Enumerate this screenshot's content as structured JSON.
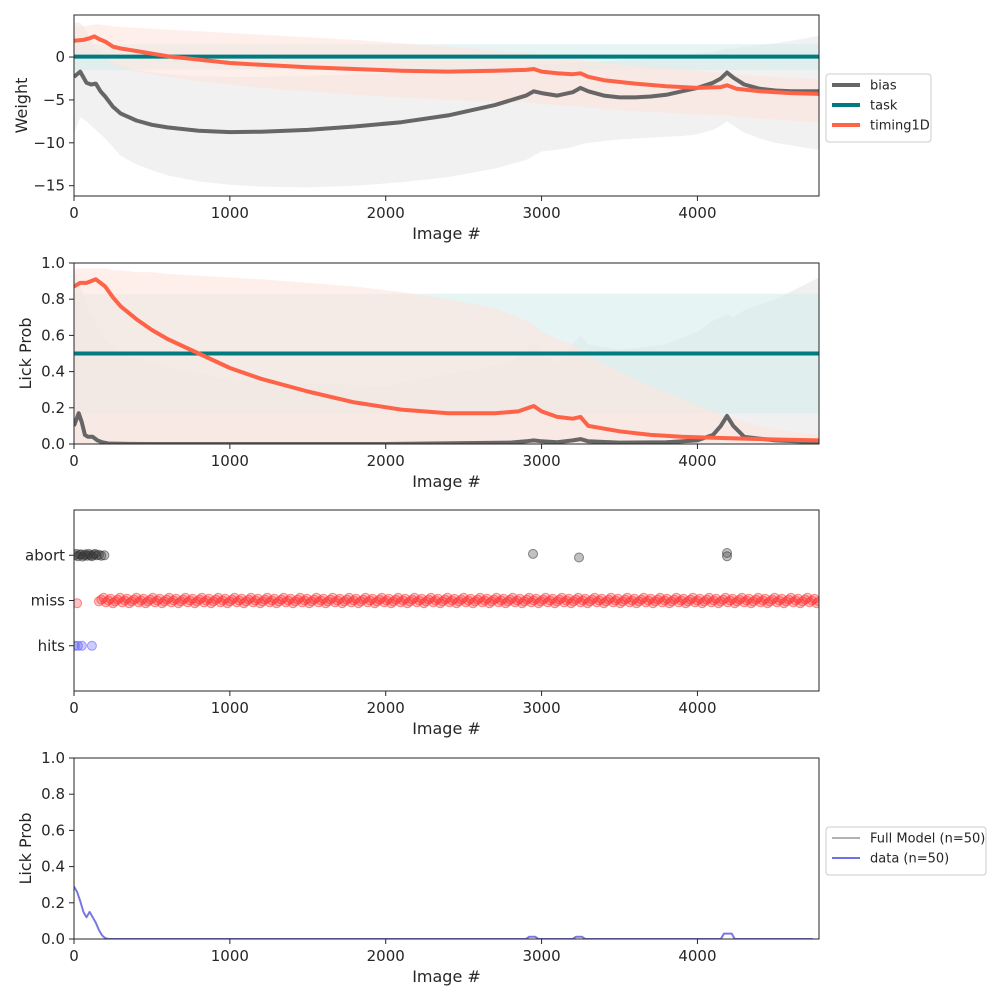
{
  "chart_data": [
    {
      "type": "line",
      "xlabel": "Image #",
      "ylabel": "Weight",
      "xlim": [
        0,
        4780
      ],
      "ylim": [
        -16.2,
        4.9
      ],
      "xticks": [
        0,
        1000,
        2000,
        3000,
        4000
      ],
      "yticks": [
        0,
        -5,
        -10,
        -15
      ],
      "ytick_labels": [
        "0",
        "−5",
        "−10",
        "−15"
      ],
      "grid": false,
      "legend": "outside-right",
      "series": [
        {
          "name": "bias",
          "color": "#666666",
          "x": [
            0,
            40,
            80,
            110,
            140,
            170,
            200,
            250,
            300,
            400,
            500,
            600,
            800,
            1000,
            1200,
            1500,
            1800,
            2100,
            2400,
            2700,
            2900,
            2950,
            3000,
            3100,
            3200,
            3250,
            3300,
            3400,
            3500,
            3600,
            3700,
            3800,
            3900,
            4000,
            4100,
            4150,
            4190,
            4230,
            4300,
            4400,
            4500,
            4600,
            4700,
            4780
          ],
          "y": [
            -2.3,
            -1.7,
            -3.0,
            -3.2,
            -3.1,
            -4.0,
            -4.6,
            -5.8,
            -6.6,
            -7.4,
            -7.9,
            -8.2,
            -8.6,
            -8.75,
            -8.7,
            -8.5,
            -8.1,
            -7.6,
            -6.8,
            -5.6,
            -4.5,
            -4.0,
            -4.2,
            -4.5,
            -4.1,
            -3.6,
            -4.0,
            -4.5,
            -4.7,
            -4.7,
            -4.6,
            -4.4,
            -4.0,
            -3.6,
            -3.0,
            -2.5,
            -1.8,
            -2.4,
            -3.2,
            -3.7,
            -3.9,
            -4.0,
            -4.0,
            -4.0
          ],
          "band_upper": [
            4.0,
            4.0,
            3.0,
            2.0,
            1.0,
            0.5,
            0.0,
            -0.5,
            -1.0,
            -1.5,
            -1.8,
            -2.0,
            -2.2,
            -2.3,
            -2.3,
            -2.2,
            -2.0,
            -1.8,
            -1.5,
            -1.2,
            -1.0,
            -0.8,
            -0.8,
            -0.8,
            -0.7,
            -0.6,
            -0.6,
            -0.5,
            -0.4,
            -0.3,
            -0.2,
            0.0,
            0.2,
            0.4,
            0.6,
            0.8,
            1.0,
            1.0,
            1.2,
            1.4,
            1.6,
            1.9,
            2.2,
            2.5
          ],
          "band_lower": [
            -9.0,
            -7.0,
            -7.5,
            -8.0,
            -8.5,
            -9.0,
            -9.5,
            -10.5,
            -11.5,
            -12.5,
            -13.2,
            -13.8,
            -14.5,
            -14.9,
            -15.1,
            -15.2,
            -15.0,
            -14.6,
            -14.0,
            -13.0,
            -12.0,
            -11.5,
            -11.0,
            -10.8,
            -10.5,
            -10.2,
            -10.0,
            -9.8,
            -9.6,
            -9.5,
            -9.4,
            -9.3,
            -9.2,
            -9.0,
            -8.5,
            -8.0,
            -7.5,
            -8.0,
            -8.8,
            -9.5,
            -10.0,
            -10.3,
            -10.6,
            -10.8
          ],
          "band_color": "#e8e8e8"
        },
        {
          "name": "task",
          "color": "#007b7f",
          "x": [
            0,
            4780
          ],
          "y": [
            0.05,
            0.05
          ],
          "band_upper": [
            1.5,
            1.5
          ],
          "band_lower": [
            -1.5,
            -1.5
          ],
          "band_color": "#d6ecec"
        },
        {
          "name": "timing1D",
          "color": "#ff6347",
          "x": [
            0,
            60,
            100,
            130,
            160,
            200,
            250,
            300,
            400,
            500,
            600,
            800,
            1000,
            1200,
            1500,
            1800,
            2100,
            2400,
            2700,
            2900,
            2950,
            3000,
            3100,
            3200,
            3250,
            3300,
            3400,
            3600,
            3800,
            4000,
            4150,
            4190,
            4250,
            4400,
            4600,
            4780
          ],
          "y": [
            1.9,
            2.0,
            2.2,
            2.4,
            2.1,
            1.8,
            1.2,
            1.0,
            0.7,
            0.4,
            0.1,
            -0.3,
            -0.7,
            -0.9,
            -1.2,
            -1.4,
            -1.6,
            -1.7,
            -1.6,
            -1.5,
            -1.4,
            -1.7,
            -1.9,
            -2.0,
            -1.9,
            -2.3,
            -2.7,
            -3.1,
            -3.4,
            -3.6,
            -3.5,
            -3.3,
            -3.7,
            -4.0,
            -4.2,
            -4.3
          ],
          "band_upper": [
            3.5,
            3.6,
            3.7,
            3.8,
            3.8,
            3.7,
            3.6,
            3.5,
            3.4,
            3.3,
            3.2,
            3.0,
            2.8,
            2.6,
            2.3,
            2.0,
            1.6,
            1.2,
            0.8,
            0.5,
            0.4,
            0.2,
            0.0,
            -0.2,
            -0.3,
            -0.5,
            -0.7,
            -1.0,
            -1.3,
            -1.6,
            -1.8,
            -1.8,
            -2.0,
            -2.2,
            -2.4,
            -2.6
          ],
          "band_lower": [
            0.0,
            0.0,
            0.2,
            0.4,
            0.2,
            -0.2,
            -0.8,
            -1.2,
            -1.7,
            -2.0,
            -2.3,
            -2.8,
            -3.2,
            -3.6,
            -4.0,
            -4.4,
            -4.7,
            -5.0,
            -5.2,
            -5.3,
            -5.3,
            -5.5,
            -5.6,
            -5.7,
            -5.7,
            -5.9,
            -6.1,
            -6.3,
            -6.5,
            -6.7,
            -6.8,
            -6.8,
            -7.0,
            -7.2,
            -7.4,
            -7.6
          ],
          "band_color": "#fde4de"
        }
      ],
      "zero_line": true
    },
    {
      "type": "line",
      "xlabel": "Image #",
      "ylabel": "Lick Prob",
      "xlim": [
        0,
        4780
      ],
      "ylim": [
        0,
        1
      ],
      "xticks": [
        0,
        1000,
        2000,
        3000,
        4000
      ],
      "yticks": [
        0,
        0.2,
        0.4,
        0.6,
        0.8,
        1
      ],
      "ytick_labels": [
        "0.0",
        "0.2",
        "0.4",
        "0.6",
        "0.8",
        "1.0"
      ],
      "grid": false,
      "series": [
        {
          "name": "bias",
          "color": "#666666",
          "x": [
            0,
            30,
            50,
            70,
            90,
            120,
            150,
            180,
            220,
            300,
            500,
            1000,
            2000,
            2800,
            2900,
            2950,
            3000,
            3100,
            3200,
            3250,
            3300,
            3500,
            3800,
            4000,
            4100,
            4150,
            4190,
            4230,
            4300,
            4500,
            4780
          ],
          "y": [
            0.1,
            0.17,
            0.12,
            0.05,
            0.04,
            0.04,
            0.02,
            0.01,
            0.003,
            0.001,
            0.0,
            0.0,
            0.0,
            0.008,
            0.015,
            0.02,
            0.015,
            0.01,
            0.02,
            0.027,
            0.015,
            0.008,
            0.01,
            0.02,
            0.05,
            0.1,
            0.155,
            0.1,
            0.04,
            0.02,
            0.01
          ],
          "band_upper": [
            0.95,
            0.9,
            0.85,
            0.8,
            0.75,
            0.7,
            0.65,
            0.6,
            0.55,
            0.5,
            0.45,
            0.35,
            0.32,
            0.45,
            0.52,
            0.56,
            0.5,
            0.45,
            0.55,
            0.6,
            0.55,
            0.52,
            0.55,
            0.62,
            0.68,
            0.7,
            0.72,
            0.7,
            0.74,
            0.8,
            0.92
          ],
          "band_lower": [
            0.0,
            0.0,
            0.0,
            0.0,
            0.0,
            0.0,
            0.0,
            0.0,
            0.0,
            0.0,
            0.0,
            0.0,
            0.0,
            0.0,
            0.0,
            0.0,
            0.0,
            0.0,
            0.0,
            0.0,
            0.0,
            0.0,
            0.0,
            0.0,
            0.0,
            0.0,
            0.0,
            0.0,
            0.0,
            0.0,
            0.0
          ],
          "band_color": "#e6e6e6"
        },
        {
          "name": "task",
          "color": "#007b7f",
          "x": [
            0,
            4780
          ],
          "y": [
            0.5,
            0.5
          ],
          "band_upper": [
            0.83,
            0.83
          ],
          "band_lower": [
            0.17,
            0.17
          ],
          "band_color": "#d6ecec"
        },
        {
          "name": "timing1D",
          "color": "#ff6347",
          "x": [
            0,
            40,
            80,
            110,
            140,
            170,
            200,
            250,
            300,
            400,
            500,
            600,
            800,
            1000,
            1200,
            1500,
            1800,
            2100,
            2400,
            2700,
            2850,
            2950,
            3000,
            3100,
            3200,
            3250,
            3300,
            3500,
            3700,
            3900,
            4100,
            4300,
            4500,
            4780
          ],
          "y": [
            0.87,
            0.89,
            0.89,
            0.9,
            0.91,
            0.89,
            0.87,
            0.81,
            0.76,
            0.69,
            0.63,
            0.58,
            0.5,
            0.42,
            0.36,
            0.29,
            0.23,
            0.19,
            0.17,
            0.17,
            0.18,
            0.21,
            0.18,
            0.15,
            0.14,
            0.15,
            0.1,
            0.07,
            0.05,
            0.04,
            0.035,
            0.03,
            0.025,
            0.02
          ],
          "band_upper": [
            0.97,
            0.97,
            0.97,
            0.97,
            0.97,
            0.97,
            0.97,
            0.96,
            0.96,
            0.95,
            0.95,
            0.94,
            0.93,
            0.92,
            0.91,
            0.89,
            0.87,
            0.84,
            0.8,
            0.75,
            0.7,
            0.66,
            0.62,
            0.58,
            0.55,
            0.52,
            0.48,
            0.4,
            0.32,
            0.25,
            0.18,
            0.12,
            0.08,
            0.05
          ],
          "band_lower": [
            0.0,
            0.0,
            0.0,
            0.0,
            0.0,
            0.0,
            0.0,
            0.0,
            0.0,
            0.0,
            0.0,
            0.0,
            0.0,
            0.0,
            0.0,
            0.0,
            0.0,
            0.0,
            0.0,
            0.0,
            0.0,
            0.0,
            0.0,
            0.0,
            0.0,
            0.0,
            0.0,
            0.0,
            0.0,
            0.0,
            0.0,
            0.0,
            0.0,
            0.0
          ],
          "band_color": "#fde4de"
        }
      ]
    },
    {
      "type": "scatter",
      "xlabel": "Image #",
      "ylabel": "",
      "xlim": [
        0,
        4780
      ],
      "ylim": [
        -1,
        3
      ],
      "xticks": [
        0,
        1000,
        2000,
        3000,
        4000
      ],
      "yticks": [
        0,
        1,
        2
      ],
      "ytick_labels": [
        "hits",
        "miss",
        "abort"
      ],
      "grid": false,
      "series": [
        {
          "name": "abort",
          "color": "#333333",
          "y": 2,
          "x": [
            5,
            15,
            25,
            35,
            45,
            55,
            65,
            75,
            85,
            95,
            105,
            115,
            125,
            135,
            145,
            160,
            175,
            195,
            2945,
            3240,
            4190,
            4190
          ],
          "jitter": [
            0.0,
            0.03,
            -0.02,
            0.01,
            0.02,
            -0.03,
            0.0,
            0.02,
            -0.01,
            0.03,
            0.0,
            -0.02,
            0.01,
            0.03,
            0.0,
            0.01,
            -0.01,
            0.0,
            0.03,
            -0.05,
            0.05,
            -0.02
          ]
        },
        {
          "name": "miss",
          "color": "#ff3333",
          "y": 1,
          "x": [
            20,
            160,
            4780
          ],
          "x_range": [
            160,
            4780
          ],
          "x_step": 15
        },
        {
          "name": "hits",
          "color": "#5555ff",
          "y": 0,
          "x": [
            5,
            25,
            50,
            115
          ]
        }
      ]
    },
    {
      "type": "line",
      "xlabel": "Image #",
      "ylabel": "Lick Prob",
      "xlim": [
        0,
        4780
      ],
      "ylim": [
        0,
        1
      ],
      "xticks": [
        0,
        1000,
        2000,
        3000,
        4000
      ],
      "yticks": [
        0,
        0.2,
        0.4,
        0.6,
        0.8,
        1
      ],
      "ytick_labels": [
        "0.0",
        "0.2",
        "0.4",
        "0.6",
        "0.8",
        "1.0"
      ],
      "grid": false,
      "legend": "outside-right",
      "series": [
        {
          "name": "Full Model (n=50)",
          "color": "#999999",
          "x": [
            0,
            20,
            40,
            60,
            80,
            100,
            120,
            140,
            160,
            180,
            200,
            220,
            2900,
            2920,
            2960,
            2980,
            3200,
            3220,
            3260,
            3280,
            4150,
            4170,
            4220,
            4240,
            4740
          ],
          "y": [
            0.29,
            0.26,
            0.21,
            0.15,
            0.12,
            0.15,
            0.12,
            0.09,
            0.05,
            0.02,
            0.005,
            0.0,
            0.0,
            0.012,
            0.012,
            0.0,
            0.0,
            0.012,
            0.012,
            0.0,
            0.0,
            0.03,
            0.03,
            0.0,
            0.0
          ]
        },
        {
          "name": "data (n=50)",
          "color": "#7070ee",
          "x": [
            0,
            20,
            40,
            60,
            80,
            100,
            120,
            140,
            160,
            180,
            200,
            220,
            2900,
            2920,
            2960,
            2980,
            3200,
            3220,
            3260,
            3280,
            4150,
            4170,
            4220,
            4240,
            4740
          ],
          "y": [
            0.29,
            0.26,
            0.21,
            0.15,
            0.12,
            0.15,
            0.12,
            0.09,
            0.05,
            0.02,
            0.005,
            0.0,
            0.0,
            0.012,
            0.012,
            0.0,
            0.0,
            0.012,
            0.012,
            0.0,
            0.0,
            0.03,
            0.03,
            0.0,
            0.0
          ]
        }
      ]
    }
  ]
}
